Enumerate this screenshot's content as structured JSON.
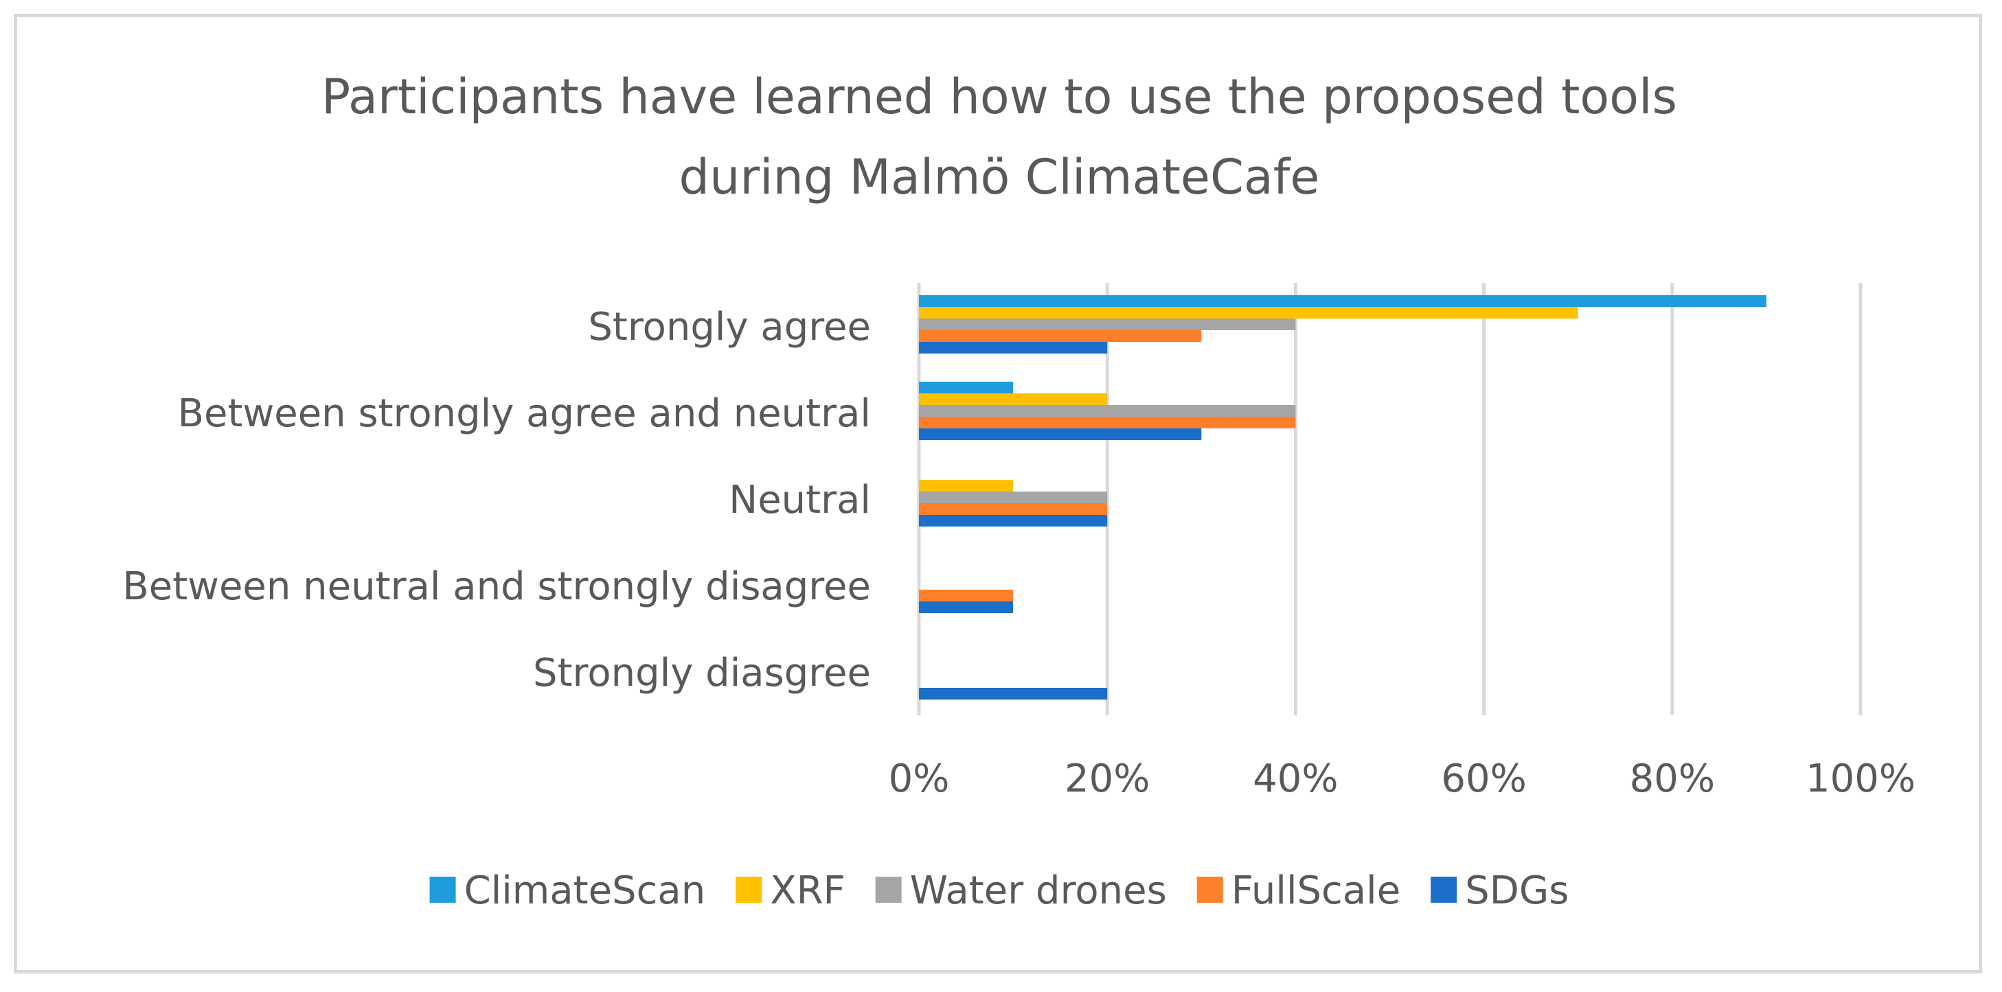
{
  "chart_data": {
    "type": "bar",
    "orientation": "horizontal",
    "title_lines": [
      "Participants have learned how to use the proposed tools",
      "during Malmö ClimateCafe"
    ],
    "categories": [
      "Strongly agree",
      "Between strongly agree and neutral",
      "Neutral",
      "Between neutral and strongly disagree",
      "Strongly diasgree"
    ],
    "series": [
      {
        "name": "ClimateScan",
        "color": "#1f9bde",
        "values": [
          0.9,
          0.1,
          0,
          0,
          0
        ]
      },
      {
        "name": "XRF",
        "color": "#ffc000",
        "values": [
          0.7,
          0.2,
          0.1,
          0,
          0
        ]
      },
      {
        "name": "Water drones",
        "color": "#a5a5a5",
        "values": [
          0.4,
          0.4,
          0.2,
          0,
          0
        ]
      },
      {
        "name": "FullScale",
        "color": "#ff7f2a",
        "values": [
          0.3,
          0.4,
          0.2,
          0.1,
          0
        ]
      },
      {
        "name": "SDGs",
        "color": "#1c6fc9",
        "values": [
          0.2,
          0.3,
          0.2,
          0.1,
          0.2
        ]
      }
    ],
    "xlim": [
      0,
      1
    ],
    "xticks": [
      "0%",
      "20%",
      "40%",
      "60%",
      "80%",
      "100%"
    ],
    "gridlines": true,
    "legend_position": "bottom"
  }
}
